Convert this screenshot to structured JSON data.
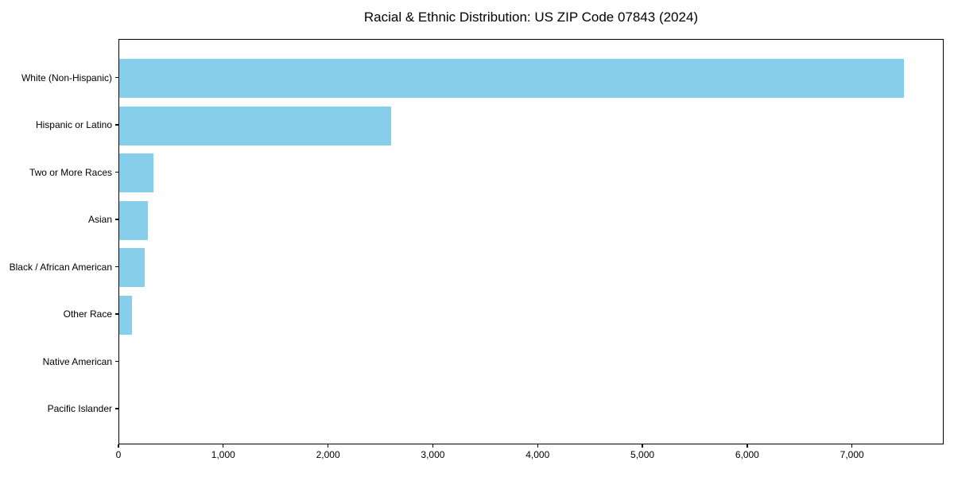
{
  "page": {
    "background_color": "#ffffff",
    "text_color": "#000000"
  },
  "chart_data": {
    "type": "bar",
    "orientation": "horizontal",
    "title": "Racial & Ethnic Distribution: US ZIP Code 07843 (2024)",
    "xlabel": "",
    "ylabel": "",
    "categories": [
      "White (Non-Hispanic)",
      "Hispanic or Latino",
      "Two or More Races",
      "Asian",
      "Black / African American",
      "Other Race",
      "Native American",
      "Pacific Islander"
    ],
    "values": [
      7500,
      2600,
      330,
      275,
      245,
      125,
      0,
      0
    ],
    "xlim": [
      0,
      7875
    ],
    "x_ticks": [
      0,
      1000,
      2000,
      3000,
      4000,
      5000,
      6000,
      7000
    ],
    "x_tick_labels": [
      "0",
      "1,000",
      "2,000",
      "3,000",
      "4,000",
      "5,000",
      "6,000",
      "7,000"
    ],
    "bar_color": "#87CEEB",
    "axis_color": "#000000",
    "grid": false,
    "legend": null,
    "value_labels_shown": false
  }
}
